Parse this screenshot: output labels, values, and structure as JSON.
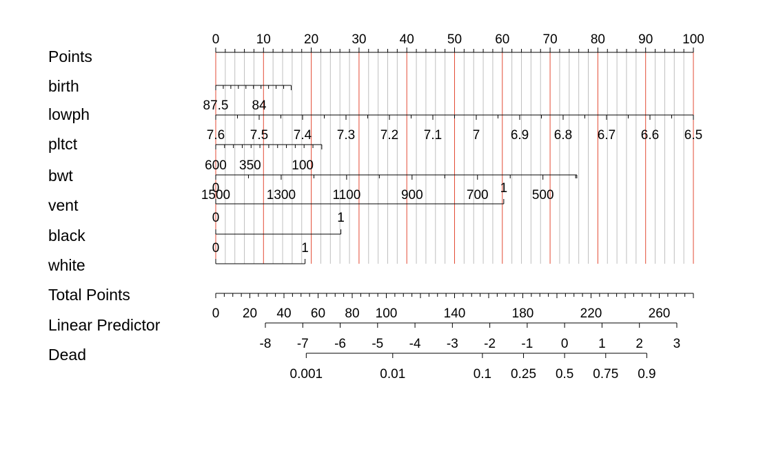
{
  "chart_data": {
    "type": "nomogram",
    "colors": {
      "major_grid": "#e34a33",
      "minor_grid": "#bebebe",
      "axis": "#000000",
      "background": "#ffffff"
    },
    "rows": [
      {
        "name": "Points",
        "points_range": [
          0,
          100
        ],
        "labels": [
          {
            "value": 0,
            "text": "0"
          },
          {
            "value": 10,
            "text": "10"
          },
          {
            "value": 20,
            "text": "20"
          },
          {
            "value": 30,
            "text": "30"
          },
          {
            "value": 40,
            "text": "40"
          },
          {
            "value": 50,
            "text": "50"
          },
          {
            "value": 60,
            "text": "60"
          },
          {
            "value": 70,
            "text": "70"
          },
          {
            "value": 80,
            "text": "80"
          },
          {
            "value": 90,
            "text": "90"
          },
          {
            "value": 100,
            "text": "100"
          }
        ]
      },
      {
        "name": "birth",
        "points_range": [
          0,
          15.8
        ],
        "labels": [
          {
            "points": 0,
            "text": "87.5"
          },
          {
            "points": 9.1,
            "text": "84"
          }
        ]
      },
      {
        "name": "lowph",
        "points_range": [
          0,
          100
        ],
        "labels": [
          {
            "points": 0,
            "text": "7.6"
          },
          {
            "points": 9.09,
            "text": "7.5"
          },
          {
            "points": 18.18,
            "text": "7.4"
          },
          {
            "points": 27.27,
            "text": "7.3"
          },
          {
            "points": 36.36,
            "text": "7.2"
          },
          {
            "points": 45.45,
            "text": "7.1"
          },
          {
            "points": 54.55,
            "text": "7"
          },
          {
            "points": 63.64,
            "text": "6.9"
          },
          {
            "points": 72.73,
            "text": "6.8"
          },
          {
            "points": 81.82,
            "text": "6.7"
          },
          {
            "points": 90.91,
            "text": "6.6"
          },
          {
            "points": 100,
            "text": "6.5"
          }
        ]
      },
      {
        "name": "pltct",
        "points_range": [
          0,
          22.2
        ],
        "labels": [
          {
            "points": 0,
            "text": "600"
          },
          {
            "points": 7.2,
            "text": "350"
          },
          {
            "points": 18.2,
            "text": "100"
          }
        ]
      },
      {
        "name": "bwt",
        "points_range": [
          0,
          75.6
        ],
        "labels": [
          {
            "points": 0,
            "text": "1500"
          },
          {
            "points": 13.7,
            "text": "1300"
          },
          {
            "points": 27.4,
            "text": "1100"
          },
          {
            "points": 41.1,
            "text": "900"
          },
          {
            "points": 54.8,
            "text": "700"
          },
          {
            "points": 68.5,
            "text": "500"
          }
        ]
      },
      {
        "name": "vent",
        "points_range": [
          0,
          60.3
        ],
        "labels": [
          {
            "points": 0,
            "text": "0"
          },
          {
            "points": 60.3,
            "text": "1"
          }
        ]
      },
      {
        "name": "black",
        "points_range": [
          0,
          26.2
        ],
        "labels": [
          {
            "points": 0,
            "text": "0"
          },
          {
            "points": 26.2,
            "text": "1"
          }
        ]
      },
      {
        "name": "white",
        "points_range": [
          0,
          18.7
        ],
        "labels": [
          {
            "points": 0,
            "text": "0"
          },
          {
            "points": 18.7,
            "text": "1"
          }
        ]
      },
      {
        "name": "Total Points",
        "range": [
          0,
          280
        ],
        "labels": [
          {
            "value": 0,
            "text": "0"
          },
          {
            "value": 20,
            "text": "20"
          },
          {
            "value": 40,
            "text": "40"
          },
          {
            "value": 60,
            "text": "60"
          },
          {
            "value": 80,
            "text": "80"
          },
          {
            "value": 100,
            "text": "100"
          },
          {
            "value": 140,
            "text": "140"
          },
          {
            "value": 180,
            "text": "180"
          },
          {
            "value": 220,
            "text": "220"
          },
          {
            "value": 260,
            "text": "260"
          }
        ]
      },
      {
        "name": "Linear Predictor",
        "range": [
          -8,
          3
        ],
        "labels": [
          {
            "value": -8,
            "text": "-8"
          },
          {
            "value": -7,
            "text": "-7"
          },
          {
            "value": -6,
            "text": "-6"
          },
          {
            "value": -5,
            "text": "-5"
          },
          {
            "value": -4,
            "text": "-4"
          },
          {
            "value": -3,
            "text": "-3"
          },
          {
            "value": -2,
            "text": "-2"
          },
          {
            "value": -1,
            "text": "-1"
          },
          {
            "value": 0,
            "text": "0"
          },
          {
            "value": 1,
            "text": "1"
          },
          {
            "value": 2,
            "text": "2"
          },
          {
            "value": 3,
            "text": "3"
          }
        ]
      },
      {
        "name": "Dead",
        "labels": [
          {
            "value": 0.001,
            "text": "0.001"
          },
          {
            "value": 0.01,
            "text": "0.01"
          },
          {
            "value": 0.1,
            "text": "0.1"
          },
          {
            "value": 0.25,
            "text": "0.25"
          },
          {
            "value": 0.5,
            "text": "0.5"
          },
          {
            "value": 0.75,
            "text": "0.75"
          },
          {
            "value": 0.9,
            "text": "0.9"
          }
        ]
      }
    ]
  }
}
